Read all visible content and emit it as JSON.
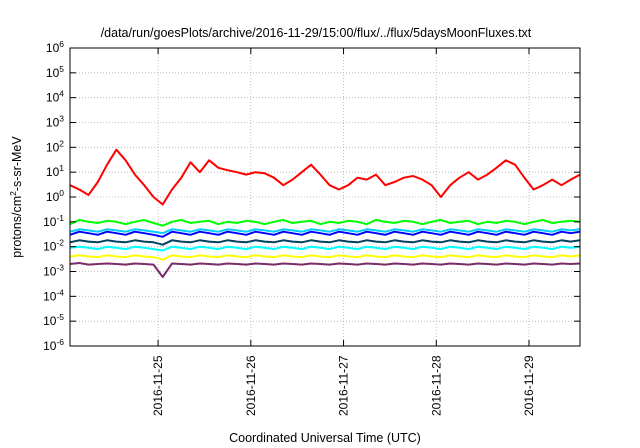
{
  "chart_data": {
    "type": "line",
    "title": "/data/run/goesPlots/archive/2016-11-29/15:00/flux/../flux/5daysMoonFluxes.txt",
    "xlabel": "Coordinated Universal Time (UTC)",
    "ylabel": {
      "prefix": "protons/cm",
      "sup": "2",
      "suffix": "-s-sr-MeV"
    },
    "yscale": "log",
    "ylim": [
      1e-06,
      1000000.0
    ],
    "xlim": [
      -0.95,
      4.55
    ],
    "grid": true,
    "y_ticks": [
      {
        "value": -6,
        "base": "10",
        "exp": "-6"
      },
      {
        "value": -5,
        "base": "10",
        "exp": "-5"
      },
      {
        "value": -4,
        "base": "10",
        "exp": "-4"
      },
      {
        "value": -3,
        "base": "10",
        "exp": "-3"
      },
      {
        "value": -2,
        "base": "10",
        "exp": "-2"
      },
      {
        "value": -1,
        "base": "10",
        "exp": "-1"
      },
      {
        "value": 0,
        "base": "10",
        "exp": "0"
      },
      {
        "value": 1,
        "base": "10",
        "exp": "1"
      },
      {
        "value": 2,
        "base": "10",
        "exp": "2"
      },
      {
        "value": 3,
        "base": "10",
        "exp": "3"
      },
      {
        "value": 4,
        "base": "10",
        "exp": "4"
      },
      {
        "value": 5,
        "base": "10",
        "exp": "5"
      },
      {
        "value": 6,
        "base": "10",
        "exp": "6"
      }
    ],
    "x_ticks": [
      {
        "value": 0,
        "label": "2016-11-25"
      },
      {
        "value": 1,
        "label": "2016-11-26"
      },
      {
        "value": 2,
        "label": "2016-11-27"
      },
      {
        "value": 3,
        "label": "2016-11-28"
      },
      {
        "value": 4,
        "label": "2016-11-29"
      }
    ],
    "x": [
      -0.95,
      -0.85,
      -0.75,
      -0.65,
      -0.55,
      -0.45,
      -0.35,
      -0.25,
      -0.15,
      -0.05,
      0.05,
      0.15,
      0.25,
      0.35,
      0.45,
      0.55,
      0.65,
      0.75,
      0.85,
      0.95,
      1.05,
      1.15,
      1.25,
      1.35,
      1.45,
      1.55,
      1.65,
      1.75,
      1.85,
      1.95,
      2.05,
      2.15,
      2.25,
      2.35,
      2.45,
      2.55,
      2.65,
      2.75,
      2.85,
      2.95,
      3.05,
      3.15,
      3.25,
      3.35,
      3.45,
      3.55,
      3.65,
      3.75,
      3.85,
      3.95,
      4.05,
      4.15,
      4.25,
      4.35,
      4.45,
      4.55
    ],
    "series": [
      {
        "color": "#ff0000",
        "values": [
          3,
          2,
          1.2,
          4,
          20,
          80,
          30,
          8,
          3,
          1,
          0.5,
          2,
          6,
          25,
          10,
          30,
          15,
          12,
          10,
          8,
          10,
          9,
          6,
          3,
          5,
          10,
          20,
          8,
          3,
          2,
          3,
          6,
          5,
          8,
          3,
          4,
          6,
          7,
          5,
          3,
          1,
          3,
          6,
          10,
          5,
          8,
          15,
          30,
          20,
          6,
          2,
          3,
          5,
          3,
          5,
          8
        ]
      },
      {
        "color": "#00ff00",
        "values": [
          0.08,
          0.12,
          0.1,
          0.09,
          0.11,
          0.1,
          0.08,
          0.1,
          0.12,
          0.09,
          0.07,
          0.1,
          0.12,
          0.09,
          0.1,
          0.11,
          0.08,
          0.1,
          0.09,
          0.11,
          0.1,
          0.08,
          0.1,
          0.12,
          0.09,
          0.1,
          0.11,
          0.08,
          0.1,
          0.09,
          0.11,
          0.1,
          0.08,
          0.12,
          0.1,
          0.09,
          0.11,
          0.1,
          0.08,
          0.1,
          0.12,
          0.09,
          0.1,
          0.11,
          0.08,
          0.1,
          0.09,
          0.11,
          0.1,
          0.08,
          0.1,
          0.12,
          0.09,
          0.1,
          0.11,
          0.1
        ]
      },
      {
        "color": "#00ccff",
        "values": [
          0.04,
          0.05,
          0.045,
          0.04,
          0.05,
          0.045,
          0.04,
          0.05,
          0.045,
          0.04,
          0.035,
          0.05,
          0.045,
          0.04,
          0.05,
          0.045,
          0.04,
          0.05,
          0.045,
          0.04,
          0.05,
          0.045,
          0.04,
          0.05,
          0.045,
          0.04,
          0.05,
          0.045,
          0.04,
          0.05,
          0.045,
          0.04,
          0.05,
          0.045,
          0.04,
          0.05,
          0.045,
          0.04,
          0.05,
          0.045,
          0.04,
          0.05,
          0.045,
          0.04,
          0.05,
          0.045,
          0.04,
          0.05,
          0.045,
          0.04,
          0.05,
          0.045,
          0.04,
          0.05,
          0.045,
          0.05
        ]
      },
      {
        "color": "#0000ff",
        "values": [
          0.03,
          0.04,
          0.035,
          0.03,
          0.04,
          0.035,
          0.03,
          0.04,
          0.035,
          0.03,
          0.025,
          0.04,
          0.035,
          0.03,
          0.04,
          0.035,
          0.03,
          0.04,
          0.035,
          0.03,
          0.04,
          0.035,
          0.03,
          0.04,
          0.035,
          0.03,
          0.04,
          0.035,
          0.03,
          0.04,
          0.035,
          0.03,
          0.04,
          0.035,
          0.03,
          0.04,
          0.035,
          0.03,
          0.04,
          0.035,
          0.03,
          0.04,
          0.035,
          0.03,
          0.04,
          0.035,
          0.03,
          0.04,
          0.035,
          0.03,
          0.04,
          0.035,
          0.03,
          0.04,
          0.035,
          0.04
        ]
      },
      {
        "color": "#004060",
        "values": [
          0.015,
          0.018,
          0.016,
          0.015,
          0.018,
          0.016,
          0.015,
          0.018,
          0.016,
          0.015,
          0.012,
          0.018,
          0.016,
          0.015,
          0.018,
          0.016,
          0.015,
          0.018,
          0.016,
          0.015,
          0.018,
          0.016,
          0.015,
          0.018,
          0.016,
          0.015,
          0.018,
          0.016,
          0.015,
          0.018,
          0.016,
          0.015,
          0.018,
          0.016,
          0.015,
          0.018,
          0.016,
          0.015,
          0.018,
          0.016,
          0.015,
          0.018,
          0.016,
          0.015,
          0.018,
          0.016,
          0.015,
          0.018,
          0.016,
          0.015,
          0.018,
          0.016,
          0.015,
          0.018,
          0.016,
          0.018
        ]
      },
      {
        "color": "#00ffff",
        "values": [
          0.009,
          0.01,
          0.009,
          0.008,
          0.01,
          0.009,
          0.008,
          0.01,
          0.009,
          0.008,
          0.007,
          0.01,
          0.009,
          0.008,
          0.01,
          0.009,
          0.008,
          0.01,
          0.009,
          0.008,
          0.01,
          0.009,
          0.008,
          0.01,
          0.009,
          0.008,
          0.01,
          0.009,
          0.008,
          0.01,
          0.009,
          0.008,
          0.01,
          0.009,
          0.008,
          0.01,
          0.009,
          0.008,
          0.01,
          0.009,
          0.008,
          0.01,
          0.009,
          0.008,
          0.01,
          0.009,
          0.008,
          0.01,
          0.009,
          0.008,
          0.01,
          0.009,
          0.008,
          0.01,
          0.009,
          0.01
        ]
      },
      {
        "color": "#ffff00",
        "values": [
          0.004,
          0.0045,
          0.004,
          0.0038,
          0.0045,
          0.004,
          0.0038,
          0.0045,
          0.004,
          0.0038,
          0.003,
          0.0045,
          0.004,
          0.0038,
          0.0045,
          0.004,
          0.0038,
          0.0045,
          0.004,
          0.0038,
          0.0045,
          0.004,
          0.0038,
          0.0045,
          0.004,
          0.0038,
          0.0045,
          0.004,
          0.0038,
          0.0045,
          0.004,
          0.0038,
          0.0045,
          0.004,
          0.0038,
          0.0045,
          0.004,
          0.0038,
          0.0045,
          0.004,
          0.0038,
          0.0045,
          0.004,
          0.0038,
          0.0045,
          0.004,
          0.0038,
          0.0045,
          0.004,
          0.0038,
          0.0045,
          0.004,
          0.0038,
          0.0045,
          0.004,
          0.0045
        ]
      },
      {
        "color": "#7b2a6a",
        "values": [
          0.002,
          0.0022,
          0.0019,
          0.002,
          0.0021,
          0.002,
          0.0019,
          0.0021,
          0.002,
          0.0019,
          0.0006,
          0.0021,
          0.002,
          0.0019,
          0.0021,
          0.002,
          0.0019,
          0.0021,
          0.002,
          0.0019,
          0.0021,
          0.002,
          0.0019,
          0.0021,
          0.002,
          0.0019,
          0.0021,
          0.002,
          0.0019,
          0.0021,
          0.002,
          0.0019,
          0.0021,
          0.002,
          0.0019,
          0.0021,
          0.002,
          0.0019,
          0.0021,
          0.002,
          0.0019,
          0.0021,
          0.002,
          0.0019,
          0.0021,
          0.002,
          0.0019,
          0.0021,
          0.002,
          0.0019,
          0.0021,
          0.002,
          0.0019,
          0.0021,
          0.002,
          0.0021
        ]
      }
    ]
  }
}
